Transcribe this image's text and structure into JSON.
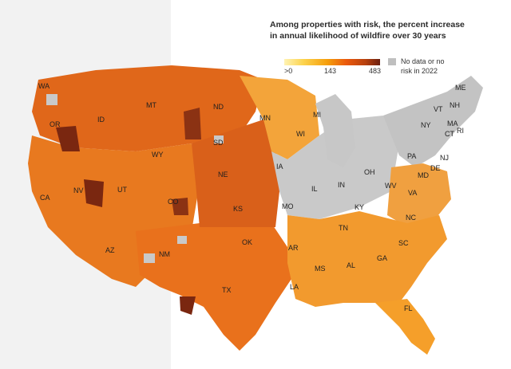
{
  "title": {
    "line1": "Among properties with risk, the percent increase",
    "line2": "in annual likelihood of wildfire over 30 years"
  },
  "legend": {
    "min_label": ">0",
    "mid_label": "143",
    "max_label": "483",
    "nodata_line1": "No data or no",
    "nodata_line2": "risk in 2022",
    "nodata_color": "#bfbfbf",
    "scale_colors": [
      "#fff3b3",
      "#fcd34d",
      "#f59e0b",
      "#ea580c",
      "#b7410e",
      "#6b1f10"
    ]
  },
  "states": [
    "WA",
    "OR",
    "CA",
    "NV",
    "ID",
    "MT",
    "WY",
    "UT",
    "AZ",
    "CO",
    "NM",
    "ND",
    "SD",
    "NE",
    "KS",
    "OK",
    "TX",
    "MN",
    "IA",
    "MO",
    "AR",
    "LA",
    "WI",
    "MI",
    "IL",
    "IN",
    "OH",
    "KY",
    "TN",
    "MS",
    "AL",
    "GA",
    "FL",
    "SC",
    "NC",
    "VA",
    "WV",
    "PA",
    "NY",
    "ME",
    "VT",
    "NH",
    "MA",
    "CT",
    "RI",
    "NJ",
    "DE",
    "MD"
  ]
}
